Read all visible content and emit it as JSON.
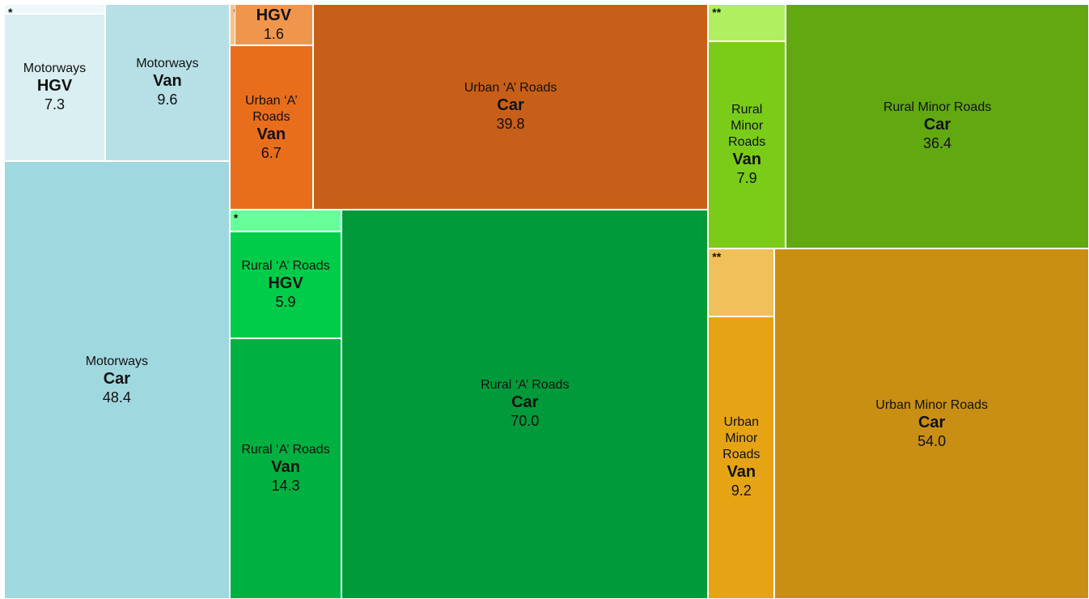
{
  "chart_data": {
    "type": "treemap",
    "groups": [
      {
        "name": "Motorways",
        "tiles": [
          {
            "vehicle": "Car",
            "value": 48.4,
            "value_label": "48.4",
            "color": "#a0d8e0"
          },
          {
            "vehicle": "HGV",
            "value": 7.3,
            "value_label": "7.3",
            "color": "#d9eff2"
          },
          {
            "vehicle": "Van",
            "value": 9.6,
            "value_label": "9.6",
            "color": "#b7e0e6"
          },
          {
            "label": "*",
            "value": 0.5,
            "color": "#eef8fa"
          }
        ]
      },
      {
        "name": "Urban ‘A’ Roads",
        "tiles": [
          {
            "vehicle": "Car",
            "value": 39.8,
            "value_label": "39.8",
            "color": "#c85f18"
          },
          {
            "vehicle": "Van",
            "value": 6.7,
            "value_label": "6.7",
            "color": "#e86e1c"
          },
          {
            "vehicle": "HGV",
            "value": 1.6,
            "value_label": "1.6",
            "color": "#f0964c"
          },
          {
            "label": "*",
            "value": 0.1,
            "color": "#f5c08c"
          }
        ]
      },
      {
        "name": "Rural ‘A’ Roads",
        "tiles": [
          {
            "vehicle": "Car",
            "value": 70.0,
            "value_label": "70.0",
            "color": "#009a3a"
          },
          {
            "vehicle": "HGV",
            "value": 5.9,
            "value_label": "5.9",
            "color": "#00cc4a"
          },
          {
            "vehicle": "Van",
            "value": 14.3,
            "value_label": "14.3",
            "color": "#00b040"
          },
          {
            "label": "*",
            "value": 1.2,
            "color": "#66ff99"
          }
        ]
      },
      {
        "name": "Rural Minor Roads",
        "tiles": [
          {
            "vehicle": "Car",
            "value": 36.4,
            "value_label": "36.4",
            "color": "#62a811"
          },
          {
            "vehicle": "Van",
            "value": 7.9,
            "value_label": "7.9",
            "color": "#7acc18"
          },
          {
            "label": "**",
            "value": 1.4,
            "color": "#b0f060"
          }
        ]
      },
      {
        "name": "Urban Minor Roads",
        "tiles": [
          {
            "vehicle": "Car",
            "value": 54.0,
            "value_label": "54.0",
            "color": "#c98f13"
          },
          {
            "vehicle": "Van",
            "value": 9.2,
            "value_label": "9.2",
            "color": "#e6a414"
          },
          {
            "label": "**",
            "value": 2.2,
            "color": "#f0c05a"
          }
        ]
      }
    ]
  }
}
